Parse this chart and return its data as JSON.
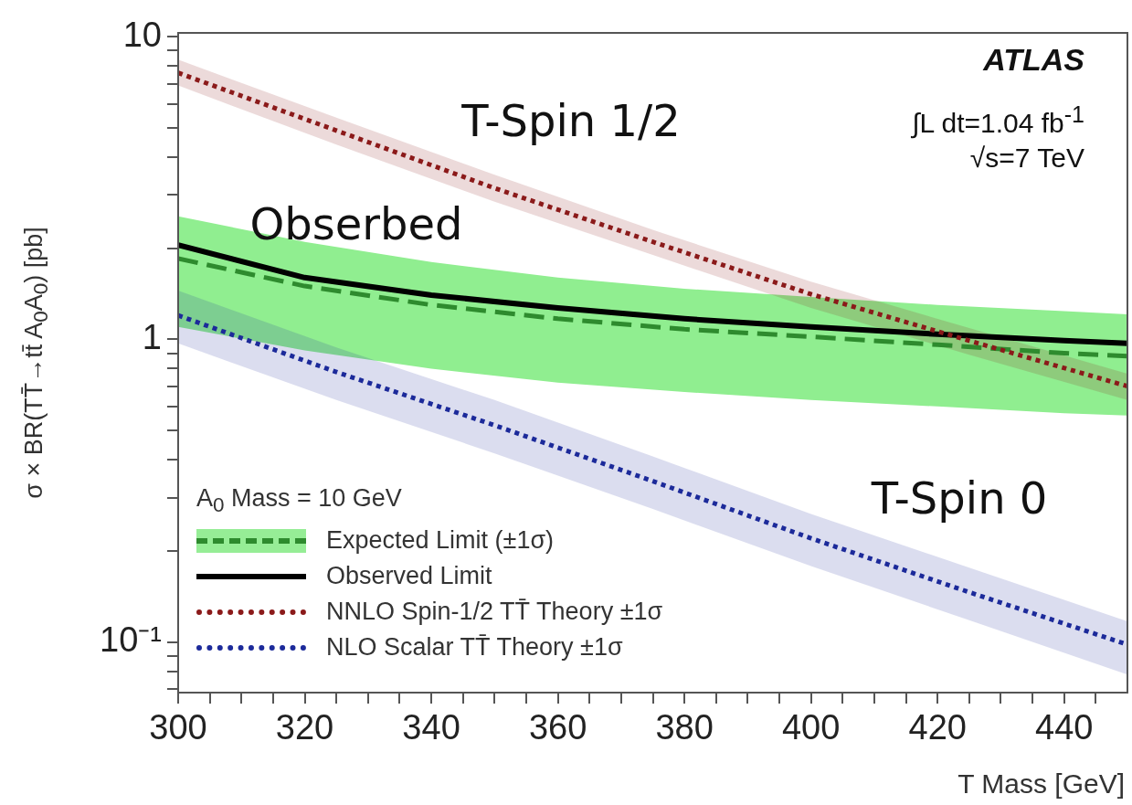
{
  "chart_data": {
    "type": "line",
    "xlabel": "T Mass [GeV]",
    "ylabel": "σ × BR(TT̄→tt̄ A$_{0}$A$_{0}$) [pb]",
    "legend_title": "A$_{0}$ Mass = 10 GeV",
    "legend": "bottom left",
    "log": "y",
    "grid": false,
    "xlim": [
      300,
      450
    ],
    "xticks": [
      300,
      {
        "value": 305,
        "label": null
      },
      {
        "value": 310,
        "label": null
      },
      {
        "value": 315,
        "label": null
      },
      320,
      {
        "value": 325,
        "label": null
      },
      {
        "value": 330,
        "label": null
      },
      {
        "value": 335,
        "label": null
      },
      340,
      {
        "value": 345,
        "label": null
      },
      {
        "value": 350,
        "label": null
      },
      {
        "value": 355,
        "label": null
      },
      360,
      {
        "value": 365,
        "label": null
      },
      {
        "value": 370,
        "label": null
      },
      {
        "value": 375,
        "label": null
      },
      380,
      {
        "value": 385,
        "label": null
      },
      {
        "value": 390,
        "label": null
      },
      {
        "value": 395,
        "label": null
      },
      400,
      {
        "value": 405,
        "label": null
      },
      {
        "value": 410,
        "label": null
      },
      {
        "value": 415,
        "label": null
      },
      420,
      {
        "value": 425,
        "label": null
      },
      {
        "value": 430,
        "label": null
      },
      {
        "value": 435,
        "label": null
      },
      440,
      {
        "value": 445,
        "label": null
      }
    ],
    "ylim": [
      0.068,
      10.3
    ],
    "yticks": [
      {
        "value": 0.07,
        "label": null
      },
      {
        "value": 0.08,
        "label": null
      },
      {
        "value": 0.09,
        "label": null
      },
      {
        "value": 0.1,
        "label": "10⁻¹"
      },
      {
        "value": 0.2,
        "label": null
      },
      {
        "value": 0.3,
        "label": null
      },
      {
        "value": 0.4,
        "label": null
      },
      {
        "value": 0.5,
        "label": null
      },
      {
        "value": 0.6,
        "label": null
      },
      {
        "value": 0.7,
        "label": null
      },
      {
        "value": 0.8,
        "label": null
      },
      {
        "value": 0.9,
        "label": null
      },
      1,
      {
        "value": 2,
        "label": null
      },
      {
        "value": 3,
        "label": null
      },
      {
        "value": 4,
        "label": null
      },
      {
        "value": 5,
        "label": null
      },
      {
        "value": 6,
        "label": null
      },
      {
        "value": 7,
        "label": null
      },
      {
        "value": 8,
        "label": null
      },
      {
        "value": 9,
        "label": null
      },
      10
    ],
    "series": [
      {
        "name": "Expected Limit (±1σ)",
        "color": "#2e8b2e",
        "line_style": "dashed",
        "x": [
          300,
          320,
          340,
          360,
          380,
          400,
          420,
          440,
          450
        ],
        "values": [
          1.85,
          1.5,
          1.3,
          1.17,
          1.08,
          1.02,
          0.96,
          0.9,
          0.88
        ],
        "lower": [
          1.1,
          0.92,
          0.8,
          0.72,
          0.67,
          0.63,
          0.6,
          0.57,
          0.56
        ],
        "upper": [
          2.55,
          2.1,
          1.8,
          1.6,
          1.47,
          1.38,
          1.3,
          1.24,
          1.21
        ]
      },
      {
        "name": "Observed Limit",
        "color": "#000000",
        "line_style": "solid",
        "x": [
          300,
          320,
          340,
          360,
          380,
          400,
          420,
          440,
          450
        ],
        "values": [
          2.05,
          1.6,
          1.4,
          1.27,
          1.17,
          1.1,
          1.04,
          0.99,
          0.97
        ]
      },
      {
        "name": "NNLO Spin-1/2 TT̄ Theory ±1σ",
        "color": "#8b1a1a",
        "line_style": "dotted",
        "x": [
          300,
          325,
          350,
          375,
          400,
          425,
          450
        ],
        "values": [
          7.6,
          4.9,
          3.16,
          2.1,
          1.41,
          0.99,
          0.7
        ],
        "lower": [
          6.9,
          4.4,
          2.85,
          1.9,
          1.27,
          0.89,
          0.63
        ],
        "upper": [
          8.4,
          5.4,
          3.5,
          2.3,
          1.55,
          1.09,
          0.77
        ]
      },
      {
        "name": "NLO Scalar TT̄ Theory ±1σ",
        "color": "#1c2a9a",
        "line_style": "dotted",
        "x": [
          300,
          325,
          350,
          375,
          400,
          425,
          450
        ],
        "values": [
          1.2,
          0.78,
          0.52,
          0.34,
          0.22,
          0.146,
          0.098
        ],
        "lower": [
          0.97,
          0.63,
          0.42,
          0.275,
          0.178,
          0.118,
          0.078
        ],
        "upper": [
          1.45,
          0.94,
          0.63,
          0.41,
          0.265,
          0.176,
          0.117
        ]
      }
    ],
    "annotations": [
      "ATLAS",
      "∫L dt=1.04 fb$^{-1}$",
      "√s=7 TeV",
      "T-Spin 1/2",
      "Obserbed",
      "T-Spin 0"
    ]
  }
}
